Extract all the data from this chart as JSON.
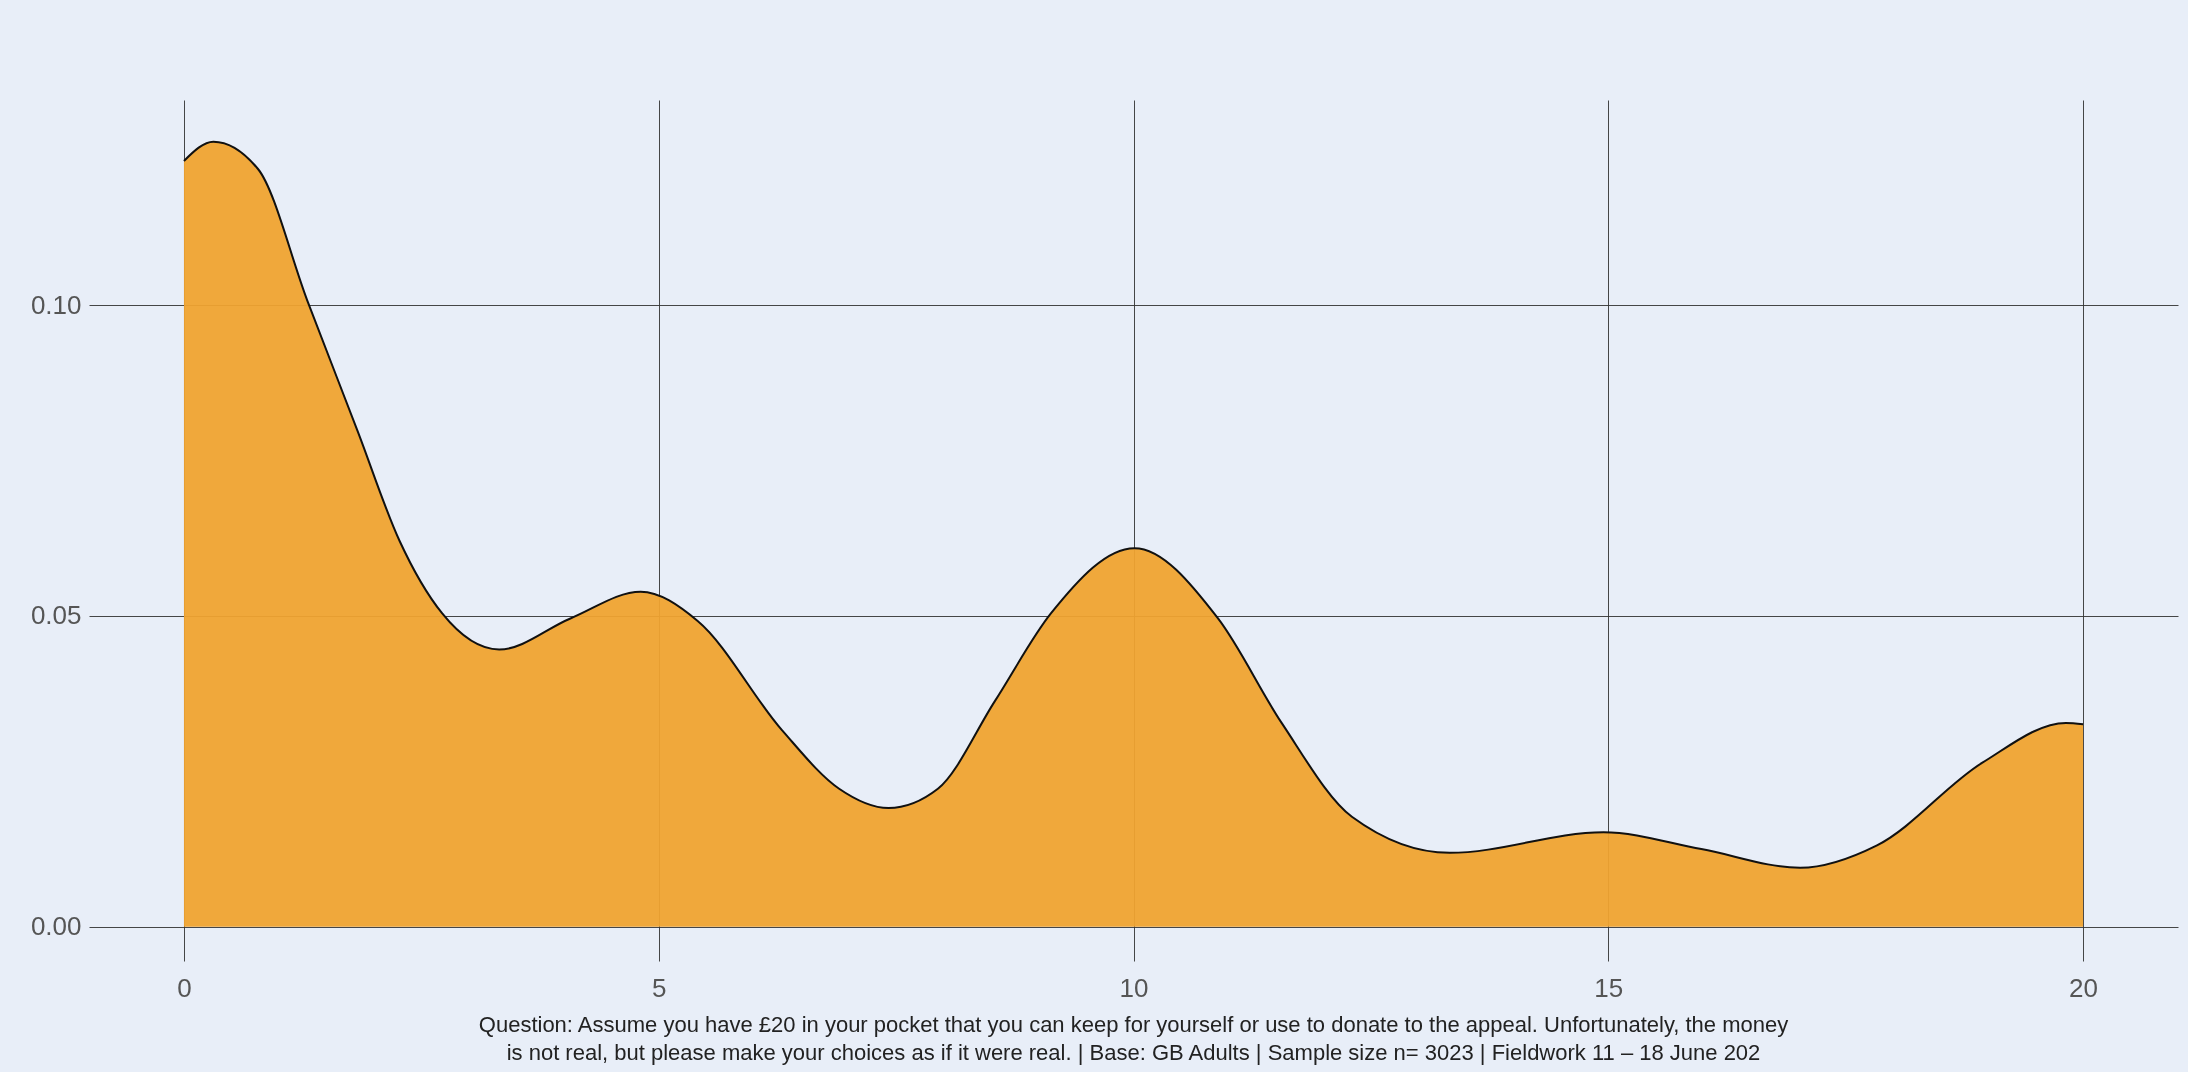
{
  "chart_data": {
    "type": "area",
    "x": [
      0,
      0.31,
      0.78,
      1.3,
      1.83,
      2.27,
      2.72,
      3.32,
      4.07,
      4.81,
      5.41,
      6.3,
      6.9,
      7.42,
      7.94,
      8.54,
      9.13,
      10.01,
      10.89,
      11.56,
      12.3,
      13.33,
      14.95,
      15.98,
      17.02,
      17.83,
      18.94,
      19.82,
      20
    ],
    "series": [
      {
        "color": "#f0a330",
        "values": [
          0.1232,
          0.1263,
          0.1219,
          0.1007,
          0.0797,
          0.0621,
          0.0504,
          0.0446,
          0.0496,
          0.0539,
          0.0492,
          0.0316,
          0.0222,
          0.0191,
          0.0222,
          0.0363,
          0.0504,
          0.0609,
          0.0496,
          0.0328,
          0.0177,
          0.0119,
          0.0152,
          0.0125,
          0.0095,
          0.0131,
          0.0264,
          0.0328,
          0.0326
        ]
      }
    ],
    "xlim": [
      -1,
      21
    ],
    "xticks": [
      0,
      5,
      10,
      15,
      20
    ],
    "ylim": [
      -0.0055,
      0.133
    ],
    "yticks": [
      {
        "value": 0,
        "label": "0.00"
      },
      {
        "value": 0.05,
        "label": "0.05"
      },
      {
        "value": 0.1,
        "label": "0.10"
      }
    ],
    "grid": true,
    "annotations": [
      "Question: Assume you have £20 in your pocket that you can keep for yourself or use to donate to the appeal. Unfortunately, the money is not real, but please make your choices as if it were real. | Base: GB Adults | Sample size n= 3023 | Fieldwork 11 – 18 June 202"
    ]
  }
}
